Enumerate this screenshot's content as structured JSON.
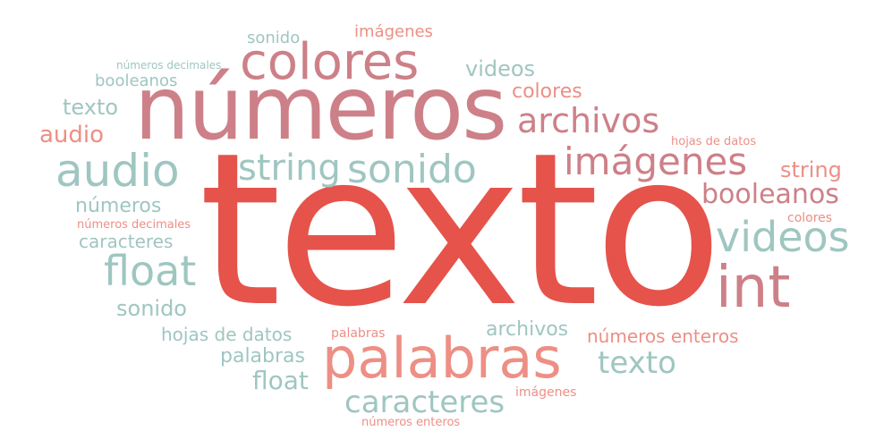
{
  "words": {
    "texto_main": "texto",
    "numeros_big": "números",
    "colores_big": "colores",
    "palabras_big": "palabras",
    "audio_big": "audio",
    "sonido_big": "sonido",
    "string_big": "string",
    "imagenes_big": "imágenes",
    "videos_big": "videos",
    "int_big": "int",
    "float_big": "float",
    "archivos_big": "archivos",
    "booleanos_r": "booleanos",
    "caracteres_b": "caracteres",
    "texto_r": "texto",
    "sonido_top": "sonido",
    "imagenes_top": "imágenes",
    "numeros_dec_top": "números decimales",
    "booleanos_l": "booleanos",
    "videos_small": "videos",
    "texto_l": "texto",
    "colores_small": "colores",
    "audio_l": "audio",
    "hojas_r": "hojas de datos",
    "string_r": "string",
    "numeros_l": "números",
    "numeros_dec_l": "números decimales",
    "colores_r": "colores",
    "caracteres_l": "caracteres",
    "sonido_l": "sonido",
    "hojas_l": "hojas de datos",
    "palabras_small": "palabras",
    "archivos_small": "archivos",
    "numeros_ent_r": "números enteros",
    "palabras_l": "palabras",
    "float_l": "float",
    "imagenes_small": "imágenes",
    "numeros_ent_b": "números enteros"
  },
  "colors": {
    "red": "#e5534b",
    "rose": "#cd8088",
    "teal": "#9fc6c1",
    "pink": "#ed8f85"
  }
}
